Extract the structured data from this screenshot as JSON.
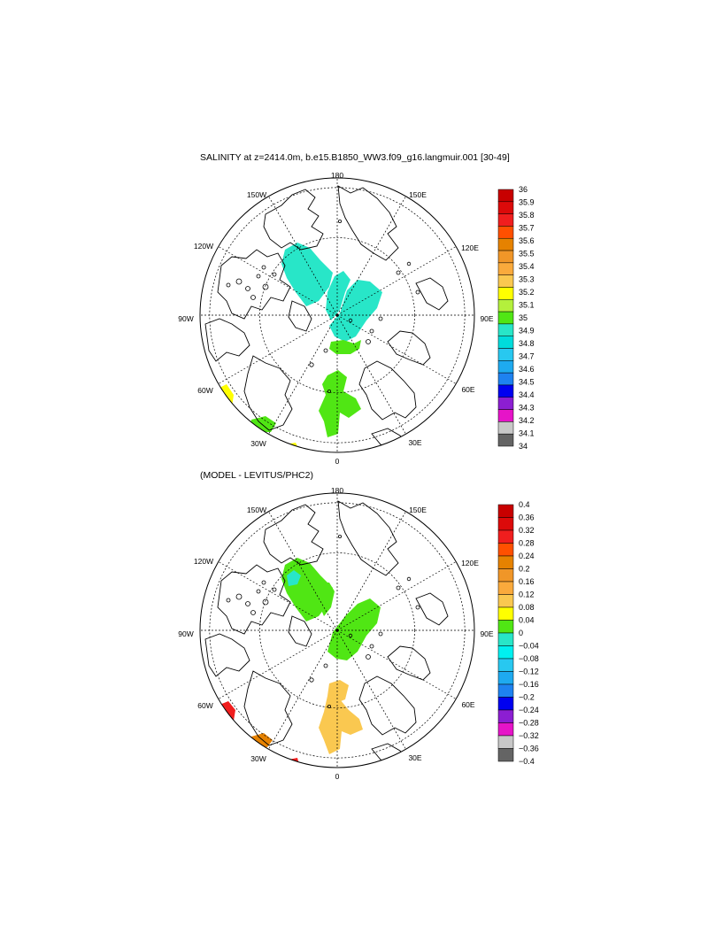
{
  "top_panel": {
    "title": "SALINITY at z=2414.0m, b.e15.B1850_WW3.f09_g16.langmuir.001 [30-49]",
    "lon_labels": [
      "180",
      "150E",
      "120E",
      "90E",
      "60E",
      "30E",
      "0",
      "30W",
      "60W",
      "90W",
      "120W",
      "150W"
    ],
    "colorbar": {
      "labels": [
        "36",
        "35.9",
        "35.8",
        "35.7",
        "35.6",
        "35.5",
        "35.4",
        "35.3",
        "35.2",
        "35.1",
        "35",
        "34.9",
        "34.8",
        "34.7",
        "34.6",
        "34.5",
        "34.4",
        "34.3",
        "34.2",
        "34.1",
        "34"
      ],
      "colors": [
        "#c80000",
        "#dc0a0a",
        "#f01e1e",
        "#ff5000",
        "#e68200",
        "#f09628",
        "#faaa3c",
        "#fac850",
        "#ffff00",
        "#b4f03c",
        "#50e614",
        "#28e6c8",
        "#00dcdc",
        "#28c8f0",
        "#1eaaf0",
        "#1e82f0",
        "#0000f0",
        "#8c1ed2",
        "#e614c8",
        "#c8c8c8",
        "#646464"
      ]
    },
    "regions": [
      {
        "name": "canada-basin-water",
        "color": "#28e6c8"
      },
      {
        "name": "makarov-basin-water",
        "color": "#28e6c8"
      },
      {
        "name": "eurasian-basin-water",
        "color": "#28e6c8"
      },
      {
        "name": "nansen-basin-water",
        "color": "#50e614"
      },
      {
        "name": "norwegian-sea-water",
        "color": "#50e614"
      },
      {
        "name": "labrador-sea-water",
        "color": "#ffff00"
      },
      {
        "name": "irminger-sea-water",
        "color": "#50e614"
      },
      {
        "name": "atlantic-edge-water",
        "color": "#ffff00"
      }
    ]
  },
  "bottom_panel": {
    "title": "(MODEL - LEVITUS/PHC2)",
    "lon_labels": [
      "180",
      "150E",
      "120E",
      "90E",
      "60E",
      "30E",
      "0",
      "30W",
      "60W",
      "90W",
      "120W",
      "150W"
    ],
    "colorbar": {
      "labels": [
        "0.4",
        "0.36",
        "0.32",
        "0.28",
        "0.24",
        "0.2",
        "0.16",
        "0.12",
        "0.08",
        "0.04",
        "0",
        "−0.04",
        "−0.08",
        "−0.12",
        "−0.16",
        "−0.2",
        "−0.24",
        "−0.28",
        "−0.32",
        "−0.36",
        "−0.4"
      ],
      "colors": [
        "#c80000",
        "#dc0a0a",
        "#f01e1e",
        "#ff5000",
        "#e68200",
        "#f09628",
        "#faaa3c",
        "#fac850",
        "#ffff00",
        "#50e614",
        "#28e6c8",
        "#00f0f0",
        "#28c8f0",
        "#1eaaf0",
        "#1e82f0",
        "#0000f0",
        "#8c1ed2",
        "#e614c8",
        "#c8c8c8",
        "#646464"
      ]
    },
    "regions": [
      {
        "name": "canada-basin-anomaly",
        "color": "#50e614"
      },
      {
        "name": "canada-basin-anomaly-small",
        "color": "#28e6c8"
      },
      {
        "name": "makarov-basin-anomaly",
        "color": "#50e614"
      },
      {
        "name": "eurasian-basin-anomaly",
        "color": "#50e614"
      },
      {
        "name": "nansen-basin-anomaly",
        "color": "#fac850"
      },
      {
        "name": "norwegian-sea-anomaly",
        "color": "#fac850"
      },
      {
        "name": "labrador-sea-anomaly",
        "color": "#f01e1e"
      },
      {
        "name": "irminger-sea-anomaly",
        "color": "#e68200"
      },
      {
        "name": "atlantic-edge-anomaly",
        "color": "#f01e1e"
      }
    ]
  }
}
